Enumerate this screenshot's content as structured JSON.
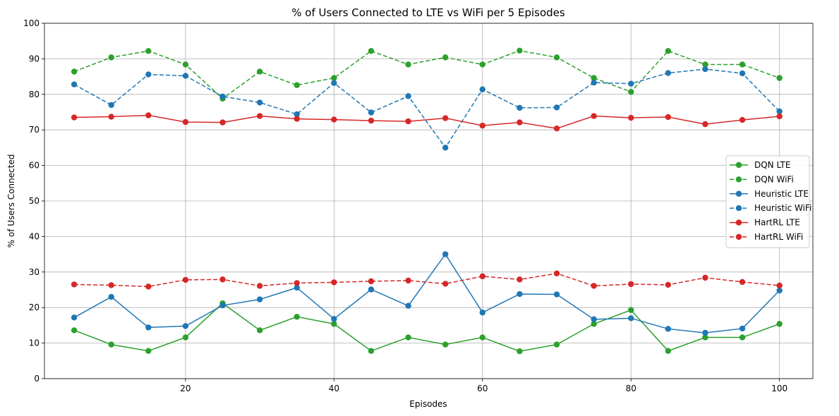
{
  "chart_data": {
    "type": "line",
    "title": "% of Users Connected to LTE vs WiFi per 5 Episodes",
    "xlabel": "Episodes",
    "ylabel": "% of Users Connected",
    "xlim": [
      1,
      104.5
    ],
    "ylim": [
      0,
      100
    ],
    "xticks": [
      20,
      40,
      60,
      80,
      100
    ],
    "yticks": [
      0,
      10,
      20,
      30,
      40,
      50,
      60,
      70,
      80,
      90,
      100
    ],
    "grid": true,
    "legend_position": "center-right",
    "x": [
      5,
      10,
      15,
      20,
      25,
      30,
      35,
      40,
      45,
      50,
      55,
      60,
      65,
      70,
      75,
      80,
      85,
      90,
      95,
      100
    ],
    "series": [
      {
        "name": "DQN LTE",
        "color": "#2ca02c",
        "dashed": false,
        "values": [
          13.6,
          9.6,
          7.8,
          11.6,
          21.2,
          13.6,
          17.4,
          15.4,
          7.8,
          11.6,
          9.6,
          11.6,
          7.7,
          9.6,
          15.4,
          19.3,
          7.8,
          11.6,
          11.6,
          15.4
        ]
      },
      {
        "name": "DQN WiFi",
        "color": "#2ca02c",
        "dashed": true,
        "values": [
          86.4,
          90.4,
          92.2,
          88.4,
          78.8,
          86.4,
          82.6,
          84.6,
          92.2,
          88.4,
          90.4,
          88.4,
          92.3,
          90.4,
          84.6,
          80.7,
          92.2,
          88.4,
          88.4,
          84.6
        ]
      },
      {
        "name": "Heuristic LTE",
        "color": "#1f77b4",
        "dashed": false,
        "values": [
          17.2,
          23.0,
          14.4,
          14.8,
          20.6,
          22.3,
          25.6,
          16.8,
          25.1,
          20.5,
          35.0,
          18.6,
          23.8,
          23.7,
          16.7,
          17.0,
          14.0,
          12.9,
          14.1,
          24.8
        ]
      },
      {
        "name": "Heuristic WiFi",
        "color": "#1f77b4",
        "dashed": true,
        "values": [
          82.8,
          77.0,
          85.6,
          85.2,
          79.4,
          77.7,
          74.4,
          83.2,
          74.9,
          79.5,
          65.0,
          81.4,
          76.2,
          76.3,
          83.3,
          83.0,
          86.0,
          87.1,
          85.9,
          75.2
        ]
      },
      {
        "name": "HartRL LTE",
        "color": "#d62728",
        "dashed": false,
        "values": [
          73.5,
          73.7,
          74.1,
          72.2,
          72.1,
          73.9,
          73.1,
          72.9,
          72.6,
          72.4,
          73.3,
          71.2,
          72.1,
          70.4,
          73.9,
          73.4,
          73.6,
          71.6,
          72.8,
          73.8
        ]
      },
      {
        "name": "HartRL WiFi",
        "color": "#d62728",
        "dashed": true,
        "values": [
          26.5,
          26.3,
          25.9,
          27.8,
          27.9,
          26.1,
          26.9,
          27.1,
          27.4,
          27.6,
          26.7,
          28.8,
          27.9,
          29.6,
          26.1,
          26.6,
          26.4,
          28.4,
          27.2,
          26.2
        ]
      }
    ]
  }
}
